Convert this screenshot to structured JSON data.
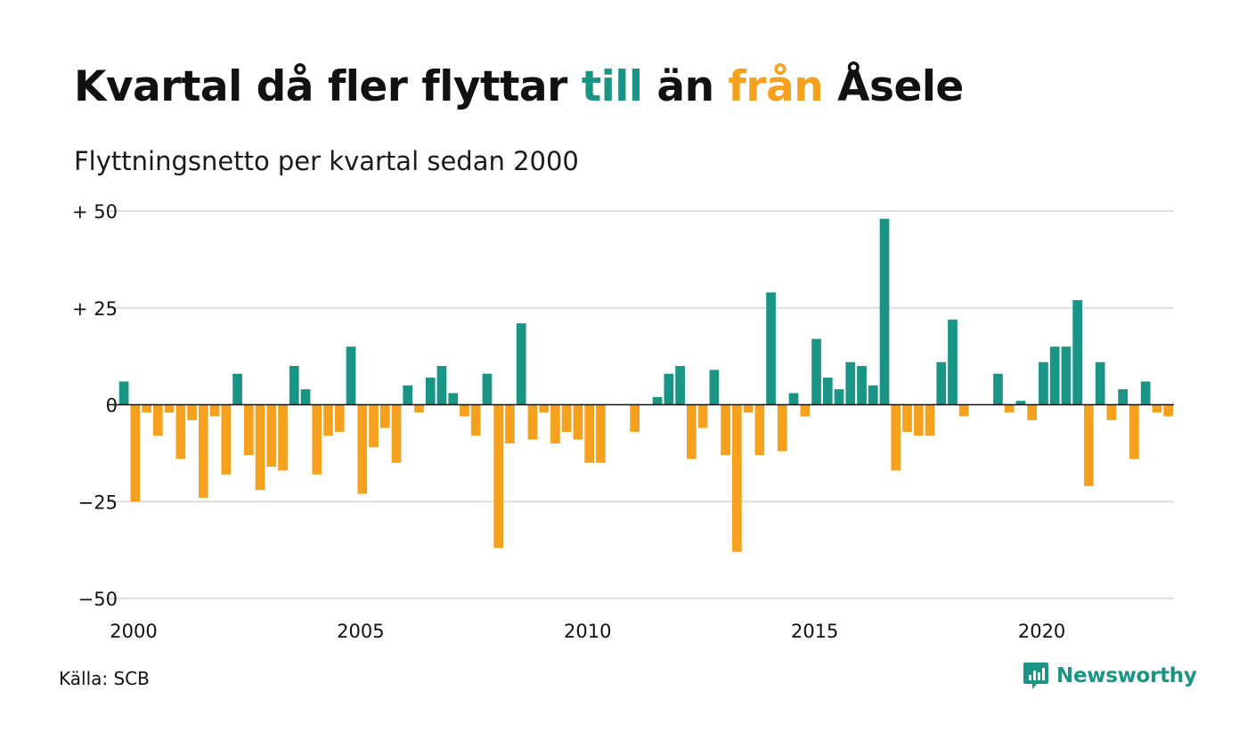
{
  "title": {
    "part1": "Kvartal då fler flyttar ",
    "till": "till",
    "part2": " än ",
    "fran": "från",
    "part3": " Åsele"
  },
  "subtitle": "Flyttningsnetto per kvartal sedan 2000",
  "source": "Källa: SCB",
  "brand": {
    "name": "Newsworthy",
    "icon": "newsworthy-logo-icon"
  },
  "colors": {
    "positive": "#1a9484",
    "negative": "#f5a11e",
    "grid": "#dddddd",
    "zero": "#111111"
  },
  "chart_data": {
    "type": "bar",
    "title": "Kvartal då fler flyttar till än från Åsele",
    "subtitle": "Flyttningsnetto per kvartal sedan 2000",
    "xlabel": "",
    "ylabel": "",
    "ylim": [
      -50,
      50
    ],
    "xlim": [
      2000,
      2023.5
    ],
    "grid": true,
    "legend": "none",
    "start_year": 2000,
    "periods_per_year": 4,
    "yticks": [
      {
        "value": 50,
        "label": "+ 50"
      },
      {
        "value": 25,
        "label": "+ 25"
      },
      {
        "value": 0,
        "label": "0"
      },
      {
        "value": -25,
        "label": "−25"
      },
      {
        "value": -50,
        "label": "−50"
      }
    ],
    "xticks": [
      {
        "value": 2000,
        "label": "2000"
      },
      {
        "value": 2005,
        "label": "2005"
      },
      {
        "value": 2010,
        "label": "2010"
      },
      {
        "value": 2015,
        "label": "2015"
      },
      {
        "value": 2020,
        "label": "2020"
      }
    ],
    "values": [
      null,
      6,
      -25,
      -2,
      -8,
      -2,
      -14,
      -4,
      -24,
      -3,
      -18,
      8,
      -13,
      -22,
      -16,
      -17,
      10,
      4,
      -18,
      -8,
      -7,
      15,
      -23,
      -11,
      -6,
      -15,
      5,
      -2,
      7,
      10,
      3,
      -3,
      -8,
      8,
      -37,
      -10,
      21,
      -9,
      -2,
      -10,
      -7,
      -9,
      -15,
      -15,
      0,
      0,
      -7,
      0,
      2,
      8,
      10,
      -14,
      -6,
      9,
      -13,
      -38,
      -2,
      -13,
      29,
      -12,
      3,
      -3,
      17,
      7,
      4,
      11,
      10,
      5,
      48,
      -17,
      -7,
      -8,
      -8,
      11,
      22,
      -3,
      0,
      0,
      8,
      -2,
      1,
      -4,
      11,
      15,
      15,
      27,
      -21,
      11,
      -4,
      4,
      -14,
      6,
      -2,
      -3
    ]
  }
}
